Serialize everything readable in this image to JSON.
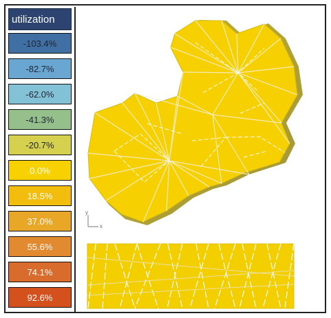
{
  "legend": {
    "title": "utilization",
    "items": [
      {
        "label": "-103.4%",
        "color": "#3f6fa3",
        "dark": true
      },
      {
        "label": "-82.7%",
        "color": "#69a6d1",
        "dark": true
      },
      {
        "label": "-62.0%",
        "color": "#82c1d6",
        "dark": true
      },
      {
        "label": "-41.3%",
        "color": "#95c08b",
        "dark": true
      },
      {
        "label": "-20.7%",
        "color": "#d5d04d",
        "dark": true
      },
      {
        "label": "0.0%",
        "color": "#f7d200",
        "dark": false
      },
      {
        "label": "18.5%",
        "color": "#f2bd0c",
        "dark": false
      },
      {
        "label": "37.0%",
        "color": "#e9a727",
        "dark": false
      },
      {
        "label": "55.6%",
        "color": "#e28a2f",
        "dark": false
      },
      {
        "label": "74.1%",
        "color": "#d96c2c",
        "dark": false
      },
      {
        "label": "92.6%",
        "color": "#d4501d",
        "dark": false
      }
    ]
  },
  "axis": {
    "y": "y",
    "x": "x"
  }
}
